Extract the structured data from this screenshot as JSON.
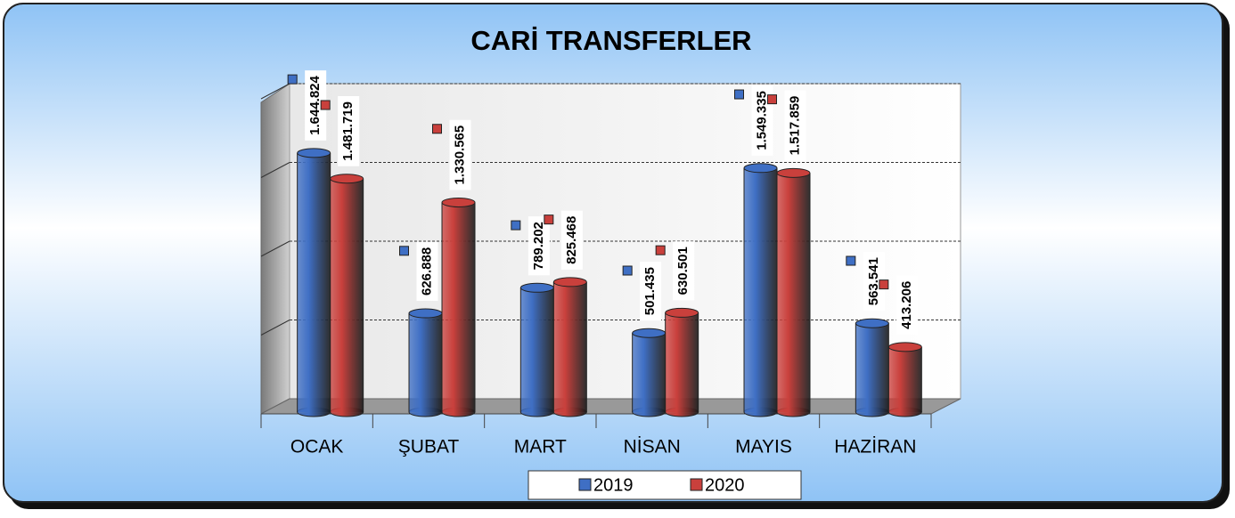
{
  "chart_data": {
    "type": "bar",
    "title": "CARİ TRANSFERLER",
    "categories": [
      "OCAK",
      "ŞUBAT",
      "MART",
      "NİSAN",
      "MAYIS",
      "HAZİRAN"
    ],
    "series": [
      {
        "name": "2019",
        "color": "#3f6fc4",
        "values": [
          1644824,
          626888,
          789202,
          501435,
          1549335,
          563541
        ],
        "value_labels": [
          "1.644.824",
          "626.888",
          "789.202",
          "501.435",
          "1.549.335",
          "563.541"
        ]
      },
      {
        "name": "2020",
        "color": "#c9403c",
        "values": [
          1481719,
          1330565,
          825468,
          630501,
          1517859,
          413206
        ],
        "value_labels": [
          "1.481.719",
          "1.330.565",
          "825.468",
          "630.501",
          "1.517.859",
          "413.206"
        ]
      }
    ],
    "ylim": [
      0,
      2000000
    ],
    "yticks": [
      0,
      500000,
      1000000,
      1500000,
      2000000
    ],
    "grid": true,
    "legend": "bottom"
  }
}
